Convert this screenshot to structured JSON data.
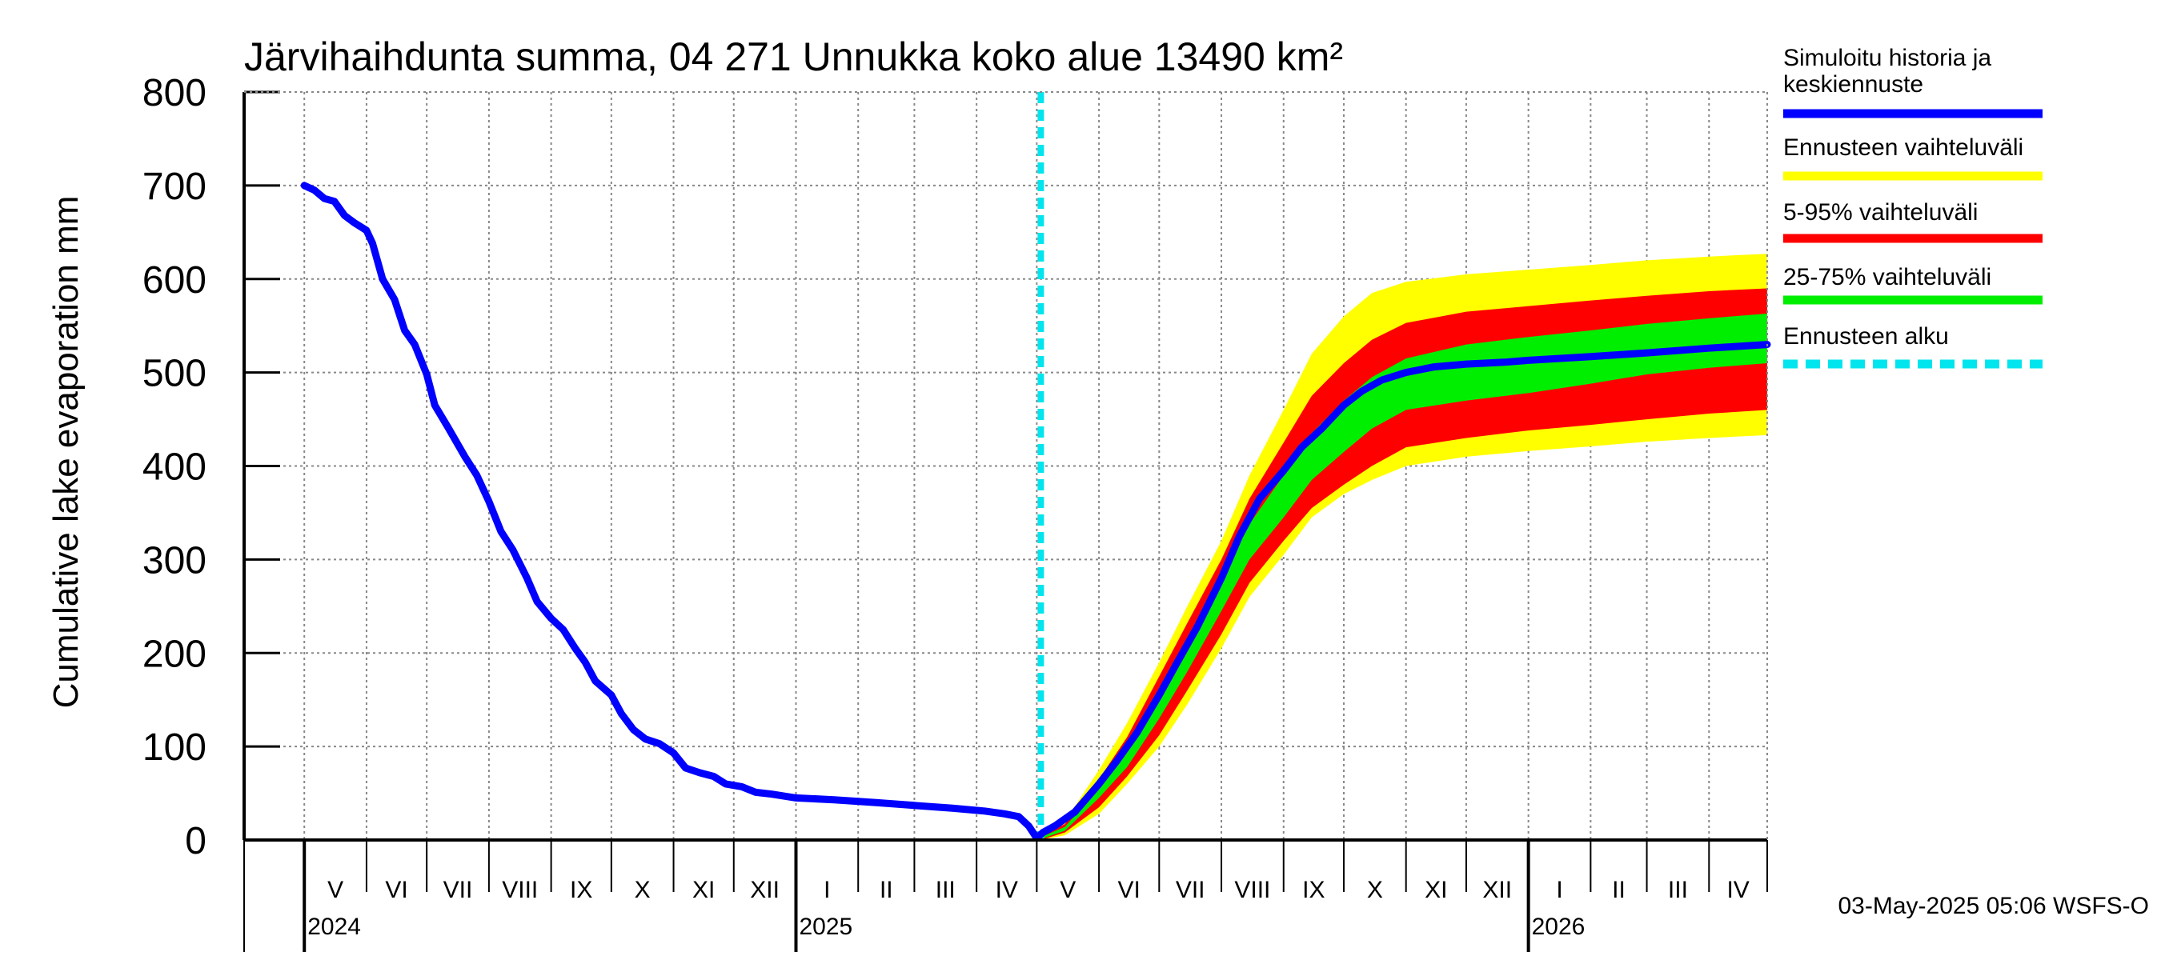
{
  "chart_data": {
    "type": "area",
    "title": "Järvihaihdunta summa, 04 271 Unnukka koko alue 13490 km²",
    "ylabel": "Cumulative lake evaporation   mm",
    "xlabel": "",
    "ylim": [
      0,
      800
    ],
    "yticks": [
      "0",
      "100",
      "200",
      "300",
      "400",
      "500",
      "600",
      "700",
      "800"
    ],
    "grid": true,
    "x_start": "2024-04-01",
    "x_end": "2026-04-30",
    "months": [
      {
        "label": "V",
        "start": "2024-05-01"
      },
      {
        "label": "VI",
        "start": "2024-06-01"
      },
      {
        "label": "VII",
        "start": "2024-07-01"
      },
      {
        "label": "VIII",
        "start": "2024-08-01"
      },
      {
        "label": "IX",
        "start": "2024-09-01"
      },
      {
        "label": "X",
        "start": "2024-10-01"
      },
      {
        "label": "XI",
        "start": "2024-11-01"
      },
      {
        "label": "XII",
        "start": "2024-12-01"
      },
      {
        "label": "I",
        "start": "2025-01-01"
      },
      {
        "label": "II",
        "start": "2025-02-01"
      },
      {
        "label": "III",
        "start": "2025-03-01"
      },
      {
        "label": "IV",
        "start": "2025-04-01"
      },
      {
        "label": "V",
        "start": "2025-05-01"
      },
      {
        "label": "VI",
        "start": "2025-06-01"
      },
      {
        "label": "VII",
        "start": "2025-07-01"
      },
      {
        "label": "VIII",
        "start": "2025-08-01"
      },
      {
        "label": "IX",
        "start": "2025-09-01"
      },
      {
        "label": "X",
        "start": "2025-10-01"
      },
      {
        "label": "XI",
        "start": "2025-11-01"
      },
      {
        "label": "XII",
        "start": "2025-12-01"
      },
      {
        "label": "I",
        "start": "2026-01-01"
      },
      {
        "label": "II",
        "start": "2026-02-01"
      },
      {
        "label": "III",
        "start": "2026-03-01"
      },
      {
        "label": "IV",
        "start": "2026-04-01"
      }
    ],
    "years": [
      {
        "label": "2024",
        "date": "2024-05-01"
      },
      {
        "label": "2025",
        "date": "2025-01-01"
      },
      {
        "label": "2026",
        "date": "2026-01-01"
      }
    ],
    "forecast_start": "2025-05-03",
    "series": [
      {
        "name": "Simuloitu historia ja keskiennuste",
        "color": "#0000ff",
        "points": [
          [
            "2024-05-01",
            700
          ],
          [
            "2024-05-06",
            695
          ],
          [
            "2024-05-11",
            686
          ],
          [
            "2024-05-16",
            683
          ],
          [
            "2024-05-21",
            668
          ],
          [
            "2024-05-26",
            660
          ],
          [
            "2024-06-01",
            652
          ],
          [
            "2024-06-04",
            638
          ],
          [
            "2024-06-09",
            600
          ],
          [
            "2024-06-15",
            578
          ],
          [
            "2024-06-20",
            545
          ],
          [
            "2024-06-25",
            530
          ],
          [
            "2024-07-01",
            498
          ],
          [
            "2024-07-05",
            465
          ],
          [
            "2024-07-12",
            440
          ],
          [
            "2024-07-20",
            410
          ],
          [
            "2024-07-26",
            390
          ],
          [
            "2024-08-01",
            362
          ],
          [
            "2024-08-07",
            330
          ],
          [
            "2024-08-13",
            310
          ],
          [
            "2024-08-20",
            280
          ],
          [
            "2024-08-25",
            255
          ],
          [
            "2024-09-01",
            237
          ],
          [
            "2024-09-07",
            225
          ],
          [
            "2024-09-13",
            205
          ],
          [
            "2024-09-18",
            190
          ],
          [
            "2024-09-23",
            170
          ],
          [
            "2024-10-01",
            155
          ],
          [
            "2024-10-06",
            135
          ],
          [
            "2024-10-12",
            118
          ],
          [
            "2024-10-18",
            108
          ],
          [
            "2024-10-25",
            103
          ],
          [
            "2024-11-01",
            93
          ],
          [
            "2024-11-07",
            77
          ],
          [
            "2024-11-14",
            72
          ],
          [
            "2024-11-21",
            68
          ],
          [
            "2024-11-27",
            60
          ],
          [
            "2024-12-05",
            57
          ],
          [
            "2024-12-12",
            51
          ],
          [
            "2024-12-20",
            49
          ],
          [
            "2025-01-01",
            45
          ],
          [
            "2025-01-20",
            43
          ],
          [
            "2025-02-10",
            40
          ],
          [
            "2025-03-01",
            37
          ],
          [
            "2025-03-20",
            34
          ],
          [
            "2025-04-05",
            31
          ],
          [
            "2025-04-15",
            28
          ],
          [
            "2025-04-22",
            25
          ],
          [
            "2025-04-27",
            15
          ],
          [
            "2025-05-01",
            2
          ],
          [
            "2025-05-04",
            8
          ],
          [
            "2025-05-10",
            15
          ],
          [
            "2025-05-20",
            30
          ],
          [
            "2025-06-01",
            60
          ],
          [
            "2025-06-10",
            85
          ],
          [
            "2025-06-20",
            115
          ],
          [
            "2025-07-01",
            155
          ],
          [
            "2025-07-10",
            190
          ],
          [
            "2025-07-20",
            228
          ],
          [
            "2025-08-01",
            280
          ],
          [
            "2025-08-10",
            325
          ],
          [
            "2025-08-20",
            365
          ],
          [
            "2025-09-01",
            395
          ],
          [
            "2025-09-10",
            420
          ],
          [
            "2025-09-20",
            440
          ],
          [
            "2025-10-01",
            465
          ],
          [
            "2025-10-10",
            480
          ],
          [
            "2025-10-20",
            492
          ],
          [
            "2025-11-01",
            500
          ],
          [
            "2025-11-15",
            506
          ],
          [
            "2025-12-01",
            509
          ],
          [
            "2025-12-20",
            511
          ],
          [
            "2026-01-01",
            513
          ],
          [
            "2026-02-01",
            517
          ],
          [
            "2026-03-01",
            521
          ],
          [
            "2026-04-01",
            526
          ],
          [
            "2026-04-30",
            530
          ]
        ]
      }
    ],
    "bands": [
      {
        "name": "Ennusteen vaihteluväli",
        "color": "#ffff00",
        "upper": [
          [
            "2025-05-03",
            5
          ],
          [
            "2025-05-15",
            20
          ],
          [
            "2025-06-01",
            75
          ],
          [
            "2025-06-15",
            125
          ],
          [
            "2025-07-01",
            190
          ],
          [
            "2025-07-15",
            250
          ],
          [
            "2025-08-01",
            320
          ],
          [
            "2025-08-15",
            390
          ],
          [
            "2025-09-01",
            460
          ],
          [
            "2025-09-15",
            520
          ],
          [
            "2025-10-01",
            560
          ],
          [
            "2025-10-15",
            585
          ],
          [
            "2025-11-01",
            597
          ],
          [
            "2025-12-01",
            605
          ],
          [
            "2026-01-01",
            610
          ],
          [
            "2026-02-01",
            615
          ],
          [
            "2026-03-01",
            620
          ],
          [
            "2026-04-01",
            624
          ],
          [
            "2026-04-30",
            627
          ]
        ],
        "lower": [
          [
            "2025-05-03",
            0
          ],
          [
            "2025-05-15",
            5
          ],
          [
            "2025-06-01",
            28
          ],
          [
            "2025-06-15",
            60
          ],
          [
            "2025-07-01",
            100
          ],
          [
            "2025-07-15",
            145
          ],
          [
            "2025-08-01",
            205
          ],
          [
            "2025-08-15",
            260
          ],
          [
            "2025-09-01",
            305
          ],
          [
            "2025-09-15",
            345
          ],
          [
            "2025-10-01",
            370
          ],
          [
            "2025-10-15",
            385
          ],
          [
            "2025-11-01",
            400
          ],
          [
            "2025-12-01",
            410
          ],
          [
            "2026-01-01",
            416
          ],
          [
            "2026-02-01",
            421
          ],
          [
            "2026-03-01",
            426
          ],
          [
            "2026-04-01",
            430
          ],
          [
            "2026-04-30",
            433
          ]
        ]
      },
      {
        "name": "5-95% vaihteluväli",
        "color": "#ff0000",
        "upper": [
          [
            "2025-05-03",
            4
          ],
          [
            "2025-05-15",
            17
          ],
          [
            "2025-06-01",
            65
          ],
          [
            "2025-06-15",
            110
          ],
          [
            "2025-07-01",
            175
          ],
          [
            "2025-07-15",
            232
          ],
          [
            "2025-08-01",
            300
          ],
          [
            "2025-08-15",
            365
          ],
          [
            "2025-09-01",
            425
          ],
          [
            "2025-09-15",
            475
          ],
          [
            "2025-10-01",
            510
          ],
          [
            "2025-10-15",
            535
          ],
          [
            "2025-11-01",
            553
          ],
          [
            "2025-12-01",
            565
          ],
          [
            "2026-01-01",
            571
          ],
          [
            "2026-02-01",
            577
          ],
          [
            "2026-03-01",
            582
          ],
          [
            "2026-04-01",
            587
          ],
          [
            "2026-04-30",
            590
          ]
        ],
        "lower": [
          [
            "2025-05-03",
            0
          ],
          [
            "2025-05-15",
            8
          ],
          [
            "2025-06-01",
            35
          ],
          [
            "2025-06-15",
            68
          ],
          [
            "2025-07-01",
            112
          ],
          [
            "2025-07-15",
            160
          ],
          [
            "2025-08-01",
            220
          ],
          [
            "2025-08-15",
            275
          ],
          [
            "2025-09-01",
            320
          ],
          [
            "2025-09-15",
            355
          ],
          [
            "2025-10-01",
            380
          ],
          [
            "2025-10-15",
            400
          ],
          [
            "2025-11-01",
            420
          ],
          [
            "2025-12-01",
            430
          ],
          [
            "2026-01-01",
            438
          ],
          [
            "2026-02-01",
            444
          ],
          [
            "2026-03-01",
            450
          ],
          [
            "2026-04-01",
            456
          ],
          [
            "2026-04-30",
            460
          ]
        ]
      },
      {
        "name": "25-75% vaihteluväli",
        "color": "#00ee00",
        "upper": [
          [
            "2025-05-03",
            3
          ],
          [
            "2025-05-15",
            14
          ],
          [
            "2025-06-01",
            55
          ],
          [
            "2025-06-15",
            95
          ],
          [
            "2025-07-01",
            160
          ],
          [
            "2025-07-15",
            212
          ],
          [
            "2025-08-01",
            280
          ],
          [
            "2025-08-15",
            338
          ],
          [
            "2025-09-01",
            390
          ],
          [
            "2025-09-15",
            435
          ],
          [
            "2025-10-01",
            470
          ],
          [
            "2025-10-15",
            495
          ],
          [
            "2025-11-01",
            515
          ],
          [
            "2025-12-01",
            530
          ],
          [
            "2026-01-01",
            538
          ],
          [
            "2026-02-01",
            545
          ],
          [
            "2026-03-01",
            552
          ],
          [
            "2026-04-01",
            558
          ],
          [
            "2026-04-30",
            563
          ]
        ],
        "lower": [
          [
            "2025-05-03",
            1
          ],
          [
            "2025-05-15",
            10
          ],
          [
            "2025-06-01",
            45
          ],
          [
            "2025-06-15",
            78
          ],
          [
            "2025-07-01",
            130
          ],
          [
            "2025-07-15",
            180
          ],
          [
            "2025-08-01",
            245
          ],
          [
            "2025-08-15",
            300
          ],
          [
            "2025-09-01",
            345
          ],
          [
            "2025-09-15",
            385
          ],
          [
            "2025-10-01",
            415
          ],
          [
            "2025-10-15",
            440
          ],
          [
            "2025-11-01",
            460
          ],
          [
            "2025-12-01",
            470
          ],
          [
            "2026-01-01",
            478
          ],
          [
            "2026-02-01",
            488
          ],
          [
            "2026-03-01",
            498
          ],
          [
            "2026-04-01",
            505
          ],
          [
            "2026-04-30",
            510
          ]
        ]
      }
    ],
    "legend": [
      {
        "label_lines": [
          "Simuloitu historia ja",
          "keskiennuste"
        ],
        "color": "#0000ff",
        "style": "solid"
      },
      {
        "label_lines": [
          "Ennusteen vaihteluväli"
        ],
        "color": "#ffff00",
        "style": "solid"
      },
      {
        "label_lines": [
          "5-95% vaihteluväli"
        ],
        "color": "#ff0000",
        "style": "solid"
      },
      {
        "label_lines": [
          "25-75% vaihteluväli"
        ],
        "color": "#00ee00",
        "style": "solid"
      },
      {
        "label_lines": [
          "Ennusteen alku"
        ],
        "color": "#00e5ee",
        "style": "dashed"
      }
    ],
    "footer": "03-May-2025 05:06 WSFS-O"
  }
}
